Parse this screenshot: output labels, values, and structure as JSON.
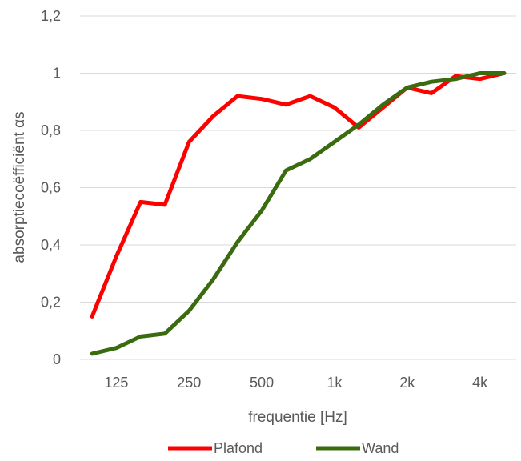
{
  "chart_data": {
    "type": "line",
    "xlabel": "frequentie [Hz]",
    "ylabel": "absorptiecoëfficiënt αs",
    "ylim": [
      0,
      1.2
    ],
    "y_ticks": [
      "0",
      "0,2",
      "0,4",
      "0,6",
      "0,8",
      "1",
      "1,2"
    ],
    "y_tick_values": [
      0,
      0.2,
      0.4,
      0.6,
      0.8,
      1.0,
      1.2
    ],
    "x_tick_labels": [
      "125",
      "250",
      "500",
      "1k",
      "2k",
      "4k"
    ],
    "x": [
      "100",
      "125",
      "160",
      "200",
      "250",
      "315",
      "400",
      "500",
      "630",
      "800",
      "1000",
      "1250",
      "1600",
      "2000",
      "2500",
      "3150",
      "4000",
      "5000"
    ],
    "grid": true,
    "legend_position": "bottom",
    "series": [
      {
        "name": "Plafond",
        "color": "#ff0000",
        "values": [
          0.15,
          0.36,
          0.55,
          0.54,
          0.76,
          0.85,
          0.92,
          0.91,
          0.89,
          0.92,
          0.88,
          0.81,
          0.88,
          0.95,
          0.93,
          0.99,
          0.98,
          1.0
        ]
      },
      {
        "name": "Wand",
        "color": "#3a6b0f",
        "values": [
          0.02,
          0.04,
          0.08,
          0.09,
          0.17,
          0.28,
          0.41,
          0.52,
          0.66,
          0.7,
          0.76,
          0.82,
          0.89,
          0.95,
          0.97,
          0.98,
          1.0,
          1.0
        ]
      }
    ]
  }
}
